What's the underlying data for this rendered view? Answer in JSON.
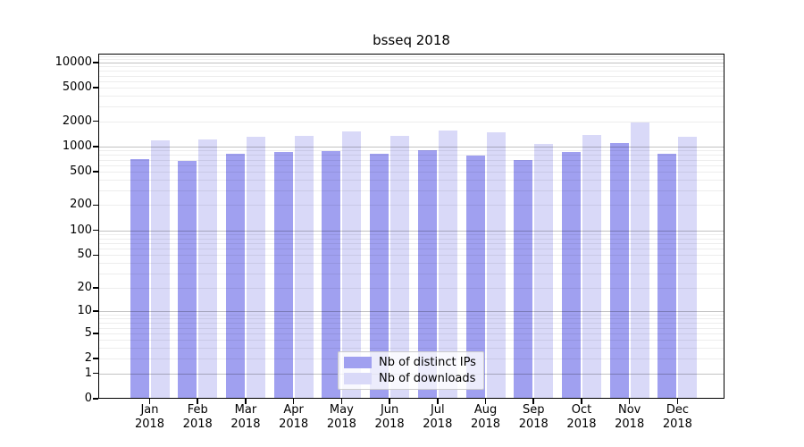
{
  "chart_data": {
    "type": "bar",
    "title": "bsseq 2018",
    "categories": [
      "Jan",
      "Feb",
      "Mar",
      "Apr",
      "May",
      "Jun",
      "Jul",
      "Aug",
      "Sep",
      "Oct",
      "Nov",
      "Dec"
    ],
    "x_year_line": "2018",
    "series": [
      {
        "name": "Nb of distinct IPs",
        "color": "#a0a0f0",
        "values": [
          715,
          675,
          815,
          870,
          885,
          825,
          905,
          790,
          685,
          855,
          1110,
          825
        ]
      },
      {
        "name": "Nb of downloads",
        "color": "#d9d9f8",
        "values": [
          1200,
          1215,
          1300,
          1350,
          1505,
          1330,
          1565,
          1470,
          1070,
          1385,
          1925,
          1320
        ]
      }
    ],
    "y_ticks": [
      10000,
      5000,
      2000,
      1000,
      500,
      200,
      100,
      50,
      20,
      10,
      5,
      2,
      1,
      0
    ],
    "y_scale": "log10(value+1)",
    "ylim": [
      0,
      12800
    ],
    "grid": true,
    "legend_position": "lower center",
    "colors": {
      "grid_major": "rgba(0,0,0,0.24)",
      "grid_minor": "rgba(0,0,0,0.07)",
      "axis": "#000000"
    }
  }
}
